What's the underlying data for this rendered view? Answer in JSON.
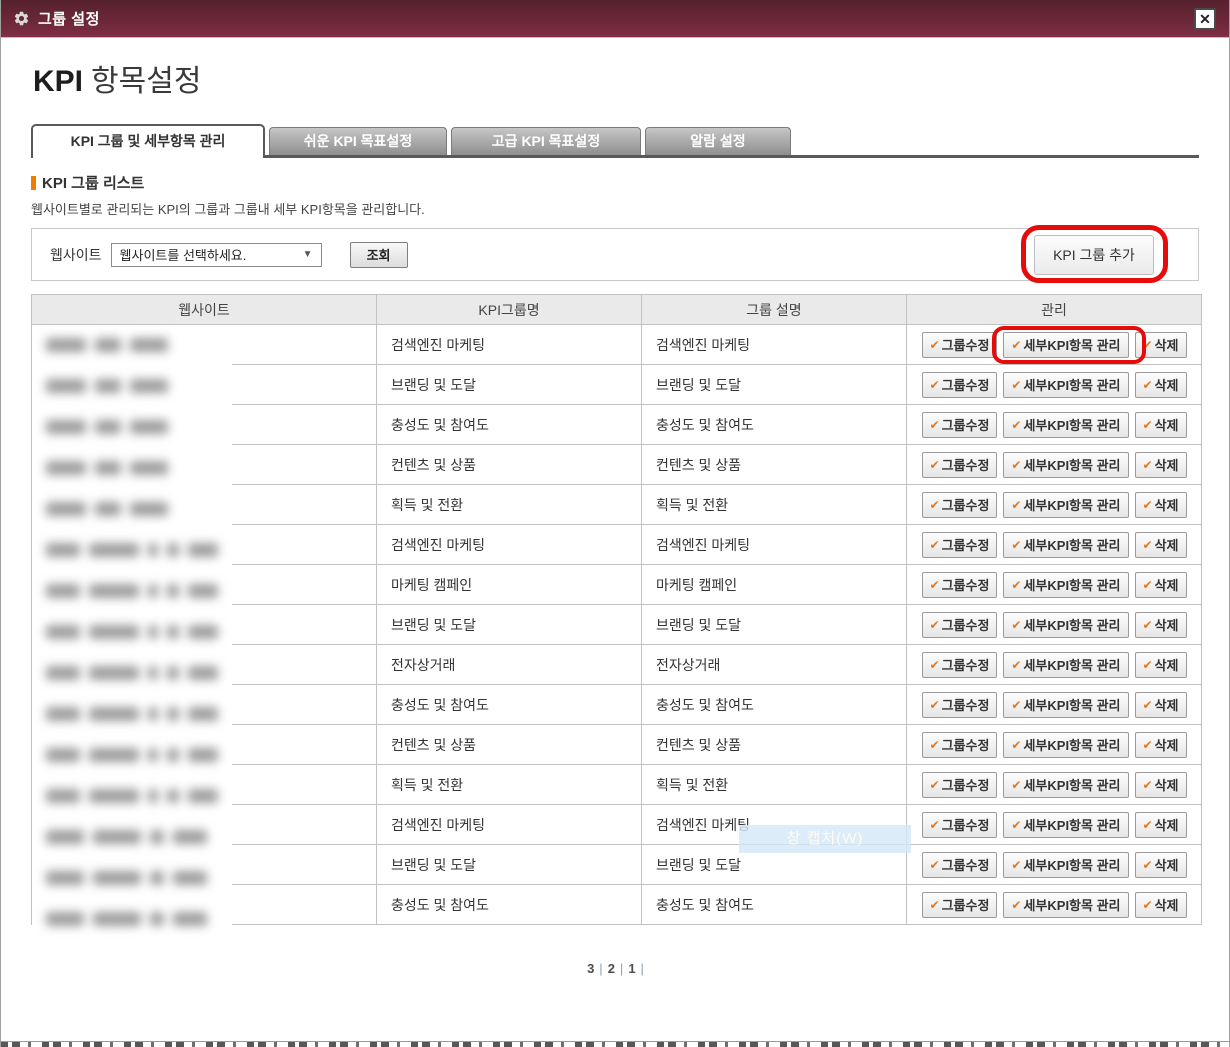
{
  "titlebar": {
    "title": "그룹 설정",
    "close_glyph": "✕"
  },
  "page": {
    "title_strong": "KPI",
    "title_rest": "항목설정"
  },
  "tabs": [
    {
      "label": "KPI 그룹 및 세부항목 관리",
      "active": true
    },
    {
      "label": "쉬운 KPI 목표설정",
      "active": false
    },
    {
      "label": "고급 KPI 목표설정",
      "active": false
    },
    {
      "label": "알람 설정",
      "active": false
    }
  ],
  "section": {
    "title": "KPI 그룹 리스트",
    "description": "웹사이트별로 관리되는 KPI의 그룹과 그룹내 세부 KPI항목을 관리합니다."
  },
  "filter": {
    "label": "웹사이트",
    "select_value": "웹사이트를 선택하세요.",
    "select_arrow": "▼",
    "search_button": "조회",
    "add_group_button": "KPI 그룹 추가"
  },
  "table": {
    "headers": [
      "웹사이트",
      "KPI그룹명",
      "그룹 설명",
      "관리"
    ],
    "action_labels": {
      "check": "✔",
      "edit": "그룹수정",
      "detail": "세부KPI항목 관리",
      "delete": "삭제"
    },
    "rows": [
      {
        "group": "검색엔진 마케팅",
        "description": "검색엔진 마케팅",
        "mask": "A",
        "highlighted": true
      },
      {
        "group": "브랜딩 및 도달",
        "description": "브랜딩 및 도달",
        "mask": "A",
        "highlighted": false
      },
      {
        "group": "충성도 및 참여도",
        "description": "충성도 및 참여도",
        "mask": "A",
        "highlighted": false
      },
      {
        "group": "컨텐츠 및 상품",
        "description": "컨텐츠 및 상품",
        "mask": "A",
        "highlighted": false
      },
      {
        "group": "획득 및 전환",
        "description": "획득 및 전환",
        "mask": "A",
        "highlighted": false
      },
      {
        "group": "검색엔진 마케팅",
        "description": "검색엔진 마케팅",
        "mask": "B",
        "highlighted": false
      },
      {
        "group": "마케팅 캠페인",
        "description": "마케팅 캠페인",
        "mask": "B",
        "highlighted": false
      },
      {
        "group": "브랜딩 및 도달",
        "description": "브랜딩 및 도달",
        "mask": "B",
        "highlighted": false
      },
      {
        "group": "전자상거래",
        "description": "전자상거래",
        "mask": "B",
        "highlighted": false
      },
      {
        "group": "충성도 및 참여도",
        "description": "충성도 및 참여도",
        "mask": "B",
        "highlighted": false
      },
      {
        "group": "컨텐츠 및 상품",
        "description": "컨텐츠 및 상품",
        "mask": "B",
        "highlighted": false
      },
      {
        "group": "획득 및 전환",
        "description": "획득 및 전환",
        "mask": "B",
        "highlighted": false
      },
      {
        "group": "검색엔진 마케팅",
        "description": "검색엔진 마케팅",
        "mask": "C",
        "highlighted": false
      },
      {
        "group": "브랜딩 및 도달",
        "description": "브랜딩 및 도달",
        "mask": "C",
        "highlighted": false
      },
      {
        "group": "충성도 및 참여도",
        "description": "충성도 및 참여도",
        "mask": "C",
        "highlighted": false
      }
    ]
  },
  "mask_patterns": {
    "A": [
      40,
      26,
      38
    ],
    "B": [
      34,
      50,
      10,
      12,
      30
    ],
    "C": [
      38,
      48,
      14,
      34
    ]
  },
  "pagination": {
    "pages": [
      "3",
      "2",
      "1"
    ],
    "separator": "|"
  },
  "watermark": {
    "text": "창 캡처(W)"
  },
  "colors": {
    "accent_orange": "#ee7d00",
    "annotation_red": "#e60c0c",
    "titlebar_maroon": "#6b2737",
    "check_orange": "#e6761c"
  }
}
